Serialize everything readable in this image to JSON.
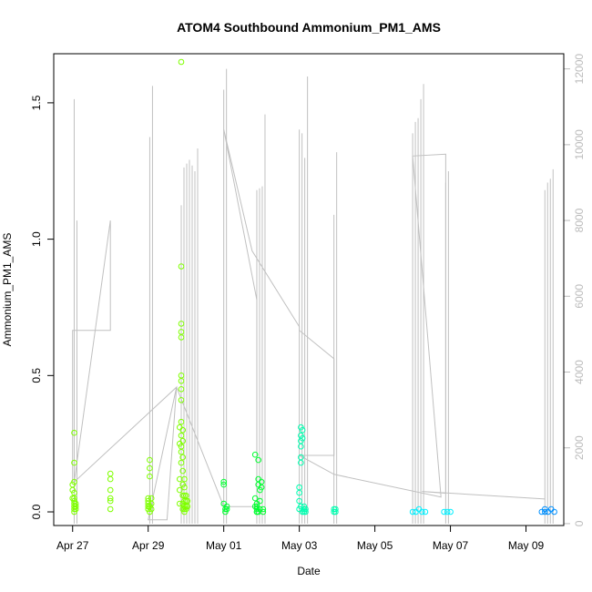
{
  "chart_data": {
    "type": "scatter",
    "title": "ATOM4 Southbound Ammonium_PM1_AMS",
    "xlabel": "Date",
    "ylabel": "Ammonium_PM1_AMS",
    "x_type": "date",
    "xlim": [
      "2016-04-26T12:00",
      "2016-05-10T00:00"
    ],
    "ylim": [
      -0.05,
      1.68
    ],
    "y2lim": [
      -50,
      12400
    ],
    "x_tick_labels": [
      "Apr 27",
      "Apr 29",
      "May 01",
      "May 03",
      "May 05",
      "May 07",
      "May 09"
    ],
    "x_ticks": [
      "2016-04-27T00:00",
      "2016-04-29T00:00",
      "2016-05-01T00:00",
      "2016-05-03T00:00",
      "2016-05-05T00:00",
      "2016-05-07T00:00",
      "2016-05-09T00:00"
    ],
    "y_ticks": [
      0.0,
      0.5,
      1.0,
      1.5
    ],
    "y_tick_labels": [
      "0.0",
      "0.5",
      "1.0",
      "1.5"
    ],
    "y2_ticks": [
      0,
      2000,
      4000,
      6000,
      8000,
      10000,
      12000
    ],
    "y2_tick_labels": [
      "0",
      "2000",
      "4000",
      "6000",
      "8000",
      "10000",
      "12000"
    ],
    "grid": false,
    "colors": {
      "secondary_line": "#c0c0c0",
      "point_scale": [
        "#7fff00",
        "#00ff30",
        "#00ffb0",
        "#00f0ff",
        "#0090ff"
      ]
    },
    "secondary_series": {
      "axis": "right",
      "spikes": [
        {
          "x": "2016-04-27T01:00",
          "values": [
            11200,
            8000
          ]
        },
        {
          "x": "2016-04-29T01:00",
          "values": [
            10200,
            11550
          ]
        },
        {
          "x": "2016-04-29T21:00",
          "values": [
            8400,
            9400,
            9500,
            9600,
            9450,
            9300,
            9900
          ]
        },
        {
          "x": "2016-05-01T00:00",
          "values": [
            11450,
            12000
          ]
        },
        {
          "x": "2016-05-01T21:00",
          "values": [
            8800,
            8850,
            8900,
            10800
          ]
        },
        {
          "x": "2016-05-03T00:00",
          "values": [
            10400,
            10300,
            9650,
            11800
          ]
        },
        {
          "x": "2016-05-03T22:00",
          "values": [
            8150,
            9800
          ]
        },
        {
          "x": "2016-05-06T00:00",
          "values": [
            10300,
            10600,
            10700,
            11200,
            11600
          ]
        },
        {
          "x": "2016-05-06T21:00",
          "values": [
            9000,
            9300
          ]
        },
        {
          "x": "2016-05-09T12:00",
          "values": [
            8800,
            9000,
            9100,
            9350
          ]
        }
      ],
      "connector": [
        [
          "2016-04-27T00:00",
          1100
        ],
        [
          "2016-04-27T00:00",
          5100
        ],
        [
          "2016-04-28T00:00",
          5100
        ],
        [
          "2016-04-28T00:00",
          8000
        ],
        [
          "2016-04-27T01:00",
          1100
        ],
        [
          "2016-04-29T18:00",
          3600
        ],
        [
          "2016-04-29T00:00",
          100
        ],
        [
          "2016-04-29T02:00",
          100
        ],
        [
          "2016-04-29T12:00",
          100
        ],
        [
          "2016-04-29T18:00",
          3600
        ],
        [
          "2016-05-01T00:00",
          450
        ],
        [
          "2016-05-01T21:00",
          450
        ],
        [
          "2016-05-01T21:00",
          5900
        ],
        [
          "2016-05-01T00:00",
          10400
        ],
        [
          "2016-05-01T18:00",
          7200
        ],
        [
          "2016-05-03T00:00",
          5200
        ],
        [
          "2016-05-03T00:00",
          5100
        ],
        [
          "2016-05-03T22:00",
          4350
        ],
        [
          "2016-05-03T22:00",
          1800
        ],
        [
          "2016-05-03T00:00",
          1800
        ],
        [
          "2016-05-03T22:00",
          1300
        ],
        [
          "2016-05-06T18:00",
          700
        ],
        [
          "2016-05-06T00:00",
          9700
        ],
        [
          "2016-05-06T21:00",
          9750
        ],
        [
          "2016-05-06T21:00",
          800
        ],
        [
          "2016-05-06T06:00",
          850
        ],
        [
          "2016-05-09T12:00",
          650
        ]
      ]
    },
    "series": [
      {
        "x": [
          "2016-04-27T00:00",
          "2016-04-27T00:00",
          "2016-04-27T00:00",
          "2016-04-27T01:00",
          "2016-04-27T01:00",
          "2016-04-27T01:00",
          "2016-04-27T01:00",
          "2016-04-27T01:00",
          "2016-04-27T01:00",
          "2016-04-27T01:00",
          "2016-04-27T01:00",
          "2016-04-27T02:00",
          "2016-04-27T02:00",
          "2016-04-27T02:00",
          "2016-04-27T01:00",
          "2016-04-27T01:00",
          "2016-04-28T00:00",
          "2016-04-28T00:00",
          "2016-04-28T00:00",
          "2016-04-28T00:00",
          "2016-04-28T00:00",
          "2016-04-28T00:00",
          "2016-04-29T00:00",
          "2016-04-29T00:00",
          "2016-04-29T00:00",
          "2016-04-29T00:00",
          "2016-04-29T00:00",
          "2016-04-29T01:00",
          "2016-04-29T01:00",
          "2016-04-29T01:00",
          "2016-04-29T02:00",
          "2016-04-29T02:00",
          "2016-04-29T02:00",
          "2016-04-29T01:00",
          "2016-04-29T01:00",
          "2016-04-29T20:00",
          "2016-04-29T20:00",
          "2016-04-29T20:00",
          "2016-04-29T20:00",
          "2016-04-29T20:00",
          "2016-04-29T21:00",
          "2016-04-29T21:00",
          "2016-04-29T21:00",
          "2016-04-29T21:00",
          "2016-04-29T21:00",
          "2016-04-29T21:00",
          "2016-04-29T21:00",
          "2016-04-29T21:00",
          "2016-04-29T21:00",
          "2016-04-29T21:00",
          "2016-04-29T21:00",
          "2016-04-29T22:00",
          "2016-04-29T22:00",
          "2016-04-29T22:00",
          "2016-04-29T22:00",
          "2016-04-29T22:00",
          "2016-04-29T22:00",
          "2016-04-29T22:00",
          "2016-04-29T22:00",
          "2016-04-29T23:00",
          "2016-04-29T23:00",
          "2016-04-29T23:00",
          "2016-04-29T23:00",
          "2016-04-29T23:00",
          "2016-04-29T23:00",
          "2016-04-29T23:00",
          "2016-04-29T21:00",
          "2016-04-29T21:00",
          "2016-04-29T21:00",
          "2016-04-30T00:00",
          "2016-04-30T00:00",
          "2016-04-30T00:00",
          "2016-04-30T00:00",
          "2016-04-30T01:00",
          "2016-04-30T01:00"
        ],
        "y": [
          0.1,
          0.08,
          0.05,
          0.29,
          0.18,
          0.11,
          0.07,
          0.05,
          0.03,
          0.02,
          0.01,
          0.03,
          0.02,
          0.01,
          0.0,
          0.04,
          0.14,
          0.12,
          0.08,
          0.05,
          0.04,
          0.01,
          0.05,
          0.04,
          0.03,
          0.02,
          0.01,
          0.19,
          0.16,
          0.13,
          0.05,
          0.03,
          0.01,
          0.0,
          0.02,
          0.31,
          0.25,
          0.12,
          0.08,
          0.03,
          1.65,
          0.9,
          0.69,
          0.66,
          0.64,
          0.5,
          0.48,
          0.45,
          0.41,
          0.33,
          0.22,
          0.3,
          0.26,
          0.2,
          0.15,
          0.1,
          0.06,
          0.03,
          0.01,
          0.12,
          0.09,
          0.06,
          0.04,
          0.02,
          0.01,
          0.0,
          0.28,
          0.24,
          0.18,
          0.06,
          0.04,
          0.02,
          0.01,
          0.04,
          0.02
        ]
      },
      {
        "x": [
          "2016-05-01T00:00",
          "2016-05-01T00:00",
          "2016-05-01T00:00",
          "2016-05-01T01:00",
          "2016-05-01T01:00",
          "2016-05-01T02:00",
          "2016-05-01T02:00",
          "2016-05-01T20:00",
          "2016-05-01T20:00",
          "2016-05-01T20:00",
          "2016-05-01T21:00",
          "2016-05-01T21:00",
          "2016-05-01T21:00",
          "2016-05-01T22:00",
          "2016-05-01T22:00",
          "2016-05-01T22:00",
          "2016-05-01T23:00",
          "2016-05-01T23:00",
          "2016-05-01T23:00",
          "2016-05-01T21:00",
          "2016-05-01T21:00",
          "2016-05-01T22:00",
          "2016-05-02T00:00",
          "2016-05-02T00:00",
          "2016-05-02T01:00",
          "2016-05-02T01:00"
        ],
        "y": [
          0.11,
          0.1,
          0.03,
          0.01,
          0.0,
          0.01,
          0.02,
          0.21,
          0.05,
          0.02,
          0.0,
          0.01,
          0.03,
          0.19,
          0.12,
          0.1,
          0.08,
          0.04,
          0.01,
          0.0,
          0.02,
          0.0,
          0.11,
          0.09,
          0.01,
          0.0
        ]
      },
      {
        "x": [
          "2016-05-03T00:00",
          "2016-05-03T00:00",
          "2016-05-03T00:00",
          "2016-05-03T00:00",
          "2016-05-03T01:00",
          "2016-05-03T01:00",
          "2016-05-03T01:00",
          "2016-05-03T01:00",
          "2016-05-03T01:00",
          "2016-05-03T01:00",
          "2016-05-03T01:00",
          "2016-05-03T02:00",
          "2016-05-03T02:00",
          "2016-05-03T02:00",
          "2016-05-03T03:00",
          "2016-05-03T03:00",
          "2016-05-03T03:00",
          "2016-05-03T04:00",
          "2016-05-03T04:00",
          "2016-05-03T22:00",
          "2016-05-03T22:00",
          "2016-05-03T23:00",
          "2016-05-03T23:00"
        ],
        "y": [
          0.09,
          0.07,
          0.04,
          0.01,
          0.31,
          0.28,
          0.26,
          0.24,
          0.2,
          0.18,
          0.02,
          0.3,
          0.27,
          0.0,
          0.01,
          0.02,
          0.0,
          0.01,
          0.0,
          0.01,
          0.0,
          0.0,
          0.01
        ]
      },
      {
        "x": [
          "2016-05-06T00:00",
          "2016-05-06T02:00",
          "2016-05-06T04:00",
          "2016-05-06T06:00",
          "2016-05-06T08:00",
          "2016-05-06T20:00",
          "2016-05-06T22:00",
          "2016-05-07T00:00"
        ],
        "y": [
          0.0,
          0.0,
          0.01,
          0.0,
          0.0,
          0.0,
          0.0,
          0.0
        ]
      },
      {
        "x": [
          "2016-05-09T10:00",
          "2016-05-09T12:00",
          "2016-05-09T14:00",
          "2016-05-09T16:00",
          "2016-05-09T18:00",
          "2016-05-09T12:00"
        ],
        "y": [
          0.0,
          0.01,
          0.0,
          0.01,
          0.0,
          0.0
        ]
      }
    ]
  }
}
